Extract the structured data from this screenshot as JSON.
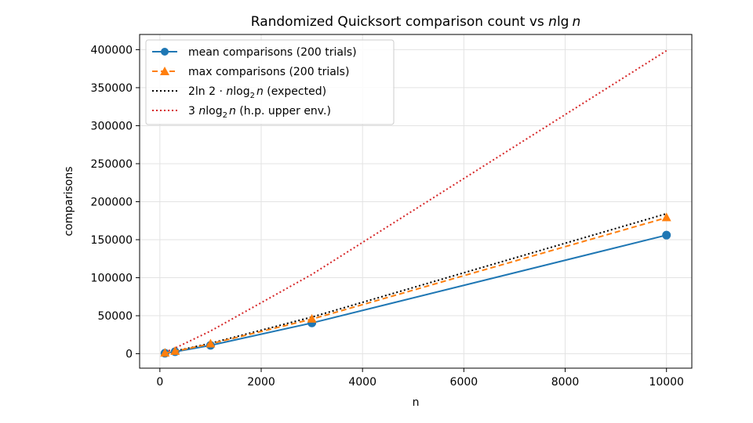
{
  "chart_data": {
    "type": "line",
    "title": "Randomized Quicksort comparison count vs n lg n",
    "title_parts": {
      "prefix": "Randomized Quicksort comparison count vs ",
      "n1": "n",
      "lg": "lg",
      "n2": "n"
    },
    "xlabel": "n",
    "ylabel": "comparisons",
    "xlim": [
      -400,
      10500
    ],
    "ylim": [
      -19000,
      420000
    ],
    "xticks": [
      0,
      2000,
      4000,
      6000,
      8000,
      10000
    ],
    "yticks": [
      0,
      50000,
      100000,
      150000,
      200000,
      250000,
      300000,
      350000,
      400000
    ],
    "grid": true,
    "legend_position": "top-left",
    "x": [
      100,
      300,
      1000,
      3000,
      10000
    ],
    "series": [
      {
        "name": "mean comparisons (200 trials)",
        "values": [
          650,
          2600,
          11000,
          40500,
          156000
        ],
        "color": "#1f77b4",
        "style": "solid",
        "marker": "circle"
      },
      {
        "name": "max comparisons (200 trials)",
        "values": [
          900,
          3200,
          13000,
          45500,
          179000
        ],
        "color": "#ff7f0e",
        "style": "dashed",
        "marker": "triangle"
      },
      {
        "name": "2ln2·nlog₂n (expected)",
        "values": [
          921,
          3416,
          13814,
          48217,
          184200
        ],
        "color": "#000000",
        "style": "dotted",
        "marker": "none"
      },
      {
        "name": "3nlog₂n (h.p. upper env.)",
        "values": [
          1993,
          7392,
          29897,
          104373,
          398631
        ],
        "color": "#d62728",
        "style": "dotted",
        "marker": "none"
      }
    ],
    "legend_parts": [
      {
        "a": "mean comparisons (200 trials)"
      },
      {
        "a": "max comparisons (200 trials)"
      },
      {
        "a": "2ln 2 · ",
        "b": "n",
        "c": "log",
        "d": "2",
        "e": "n",
        "f": " (expected)"
      },
      {
        "a": "3 ",
        "b": "n",
        "c": "log",
        "d": "2",
        "e": "n",
        "f": " (h.p. upper env.)"
      }
    ]
  }
}
